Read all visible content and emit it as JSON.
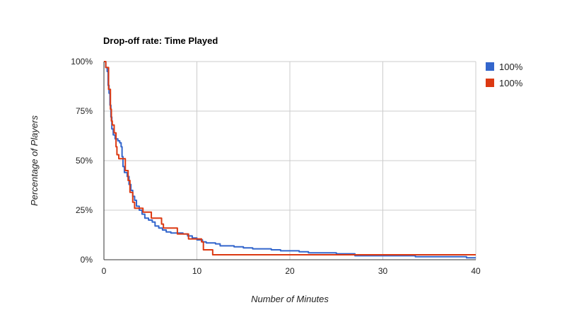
{
  "chart_data": {
    "type": "line",
    "title": "Drop-off rate: Time Played",
    "xlabel": "Number of Minutes",
    "ylabel": "Percentage of Players",
    "xlim": [
      0,
      40
    ],
    "ylim": [
      0,
      100
    ],
    "x_ticks": [
      0,
      10,
      20,
      30,
      40
    ],
    "x_tick_labels": [
      "0",
      "10",
      "20",
      "30",
      "40"
    ],
    "y_ticks": [
      0,
      25,
      50,
      75,
      100
    ],
    "y_tick_labels": [
      "0%",
      "25%",
      "50%",
      "75%",
      "100%"
    ],
    "grid": true,
    "legend_position": "right",
    "series": [
      {
        "name": "100%",
        "color": "#3366cc",
        "step": true,
        "points": [
          [
            0,
            100
          ],
          [
            0.2,
            97
          ],
          [
            0.35,
            95
          ],
          [
            0.45,
            88
          ],
          [
            0.55,
            84
          ],
          [
            0.65,
            78
          ],
          [
            0.75,
            72
          ],
          [
            0.85,
            66
          ],
          [
            1.0,
            63
          ],
          [
            1.2,
            61
          ],
          [
            1.5,
            60
          ],
          [
            1.7,
            59
          ],
          [
            1.85,
            57
          ],
          [
            1.95,
            52
          ],
          [
            2.05,
            47
          ],
          [
            2.2,
            44
          ],
          [
            2.5,
            42
          ],
          [
            2.7,
            38
          ],
          [
            2.9,
            35
          ],
          [
            3.1,
            32
          ],
          [
            3.3,
            30
          ],
          [
            3.5,
            27
          ],
          [
            3.8,
            25
          ],
          [
            4.1,
            23
          ],
          [
            4.4,
            21
          ],
          [
            4.8,
            20
          ],
          [
            5.2,
            19
          ],
          [
            5.5,
            17
          ],
          [
            5.9,
            16
          ],
          [
            6.3,
            15
          ],
          [
            6.7,
            14
          ],
          [
            7.2,
            13.5
          ],
          [
            8.5,
            13
          ],
          [
            9.0,
            12
          ],
          [
            9.5,
            11
          ],
          [
            10.0,
            10
          ],
          [
            10.6,
            9
          ],
          [
            11.0,
            8.5
          ],
          [
            12.0,
            8
          ],
          [
            12.5,
            7
          ],
          [
            14.0,
            6.5
          ],
          [
            15.0,
            6
          ],
          [
            16.0,
            5.5
          ],
          [
            18.0,
            5
          ],
          [
            19.0,
            4.5
          ],
          [
            21.0,
            4
          ],
          [
            22.0,
            3.5
          ],
          [
            25.0,
            3
          ],
          [
            27.0,
            2
          ],
          [
            33.5,
            1.5
          ],
          [
            39.0,
            1
          ],
          [
            40,
            1
          ]
        ]
      },
      {
        "name": "100%",
        "color": "#dc3912",
        "step": true,
        "points": [
          [
            0,
            100
          ],
          [
            0.2,
            97
          ],
          [
            0.5,
            86
          ],
          [
            0.7,
            76
          ],
          [
            0.8,
            70
          ],
          [
            0.9,
            68
          ],
          [
            1.1,
            64
          ],
          [
            1.3,
            57
          ],
          [
            1.4,
            53
          ],
          [
            1.6,
            51
          ],
          [
            2.3,
            45
          ],
          [
            2.6,
            40
          ],
          [
            2.8,
            34
          ],
          [
            3.1,
            29
          ],
          [
            3.3,
            26
          ],
          [
            4.2,
            24
          ],
          [
            5.1,
            21
          ],
          [
            6.2,
            18
          ],
          [
            6.4,
            16
          ],
          [
            7.9,
            13
          ],
          [
            9.1,
            10.5
          ],
          [
            10.5,
            9
          ],
          [
            10.7,
            5
          ],
          [
            11.7,
            2.5
          ],
          [
            40,
            2.5
          ]
        ]
      }
    ]
  }
}
